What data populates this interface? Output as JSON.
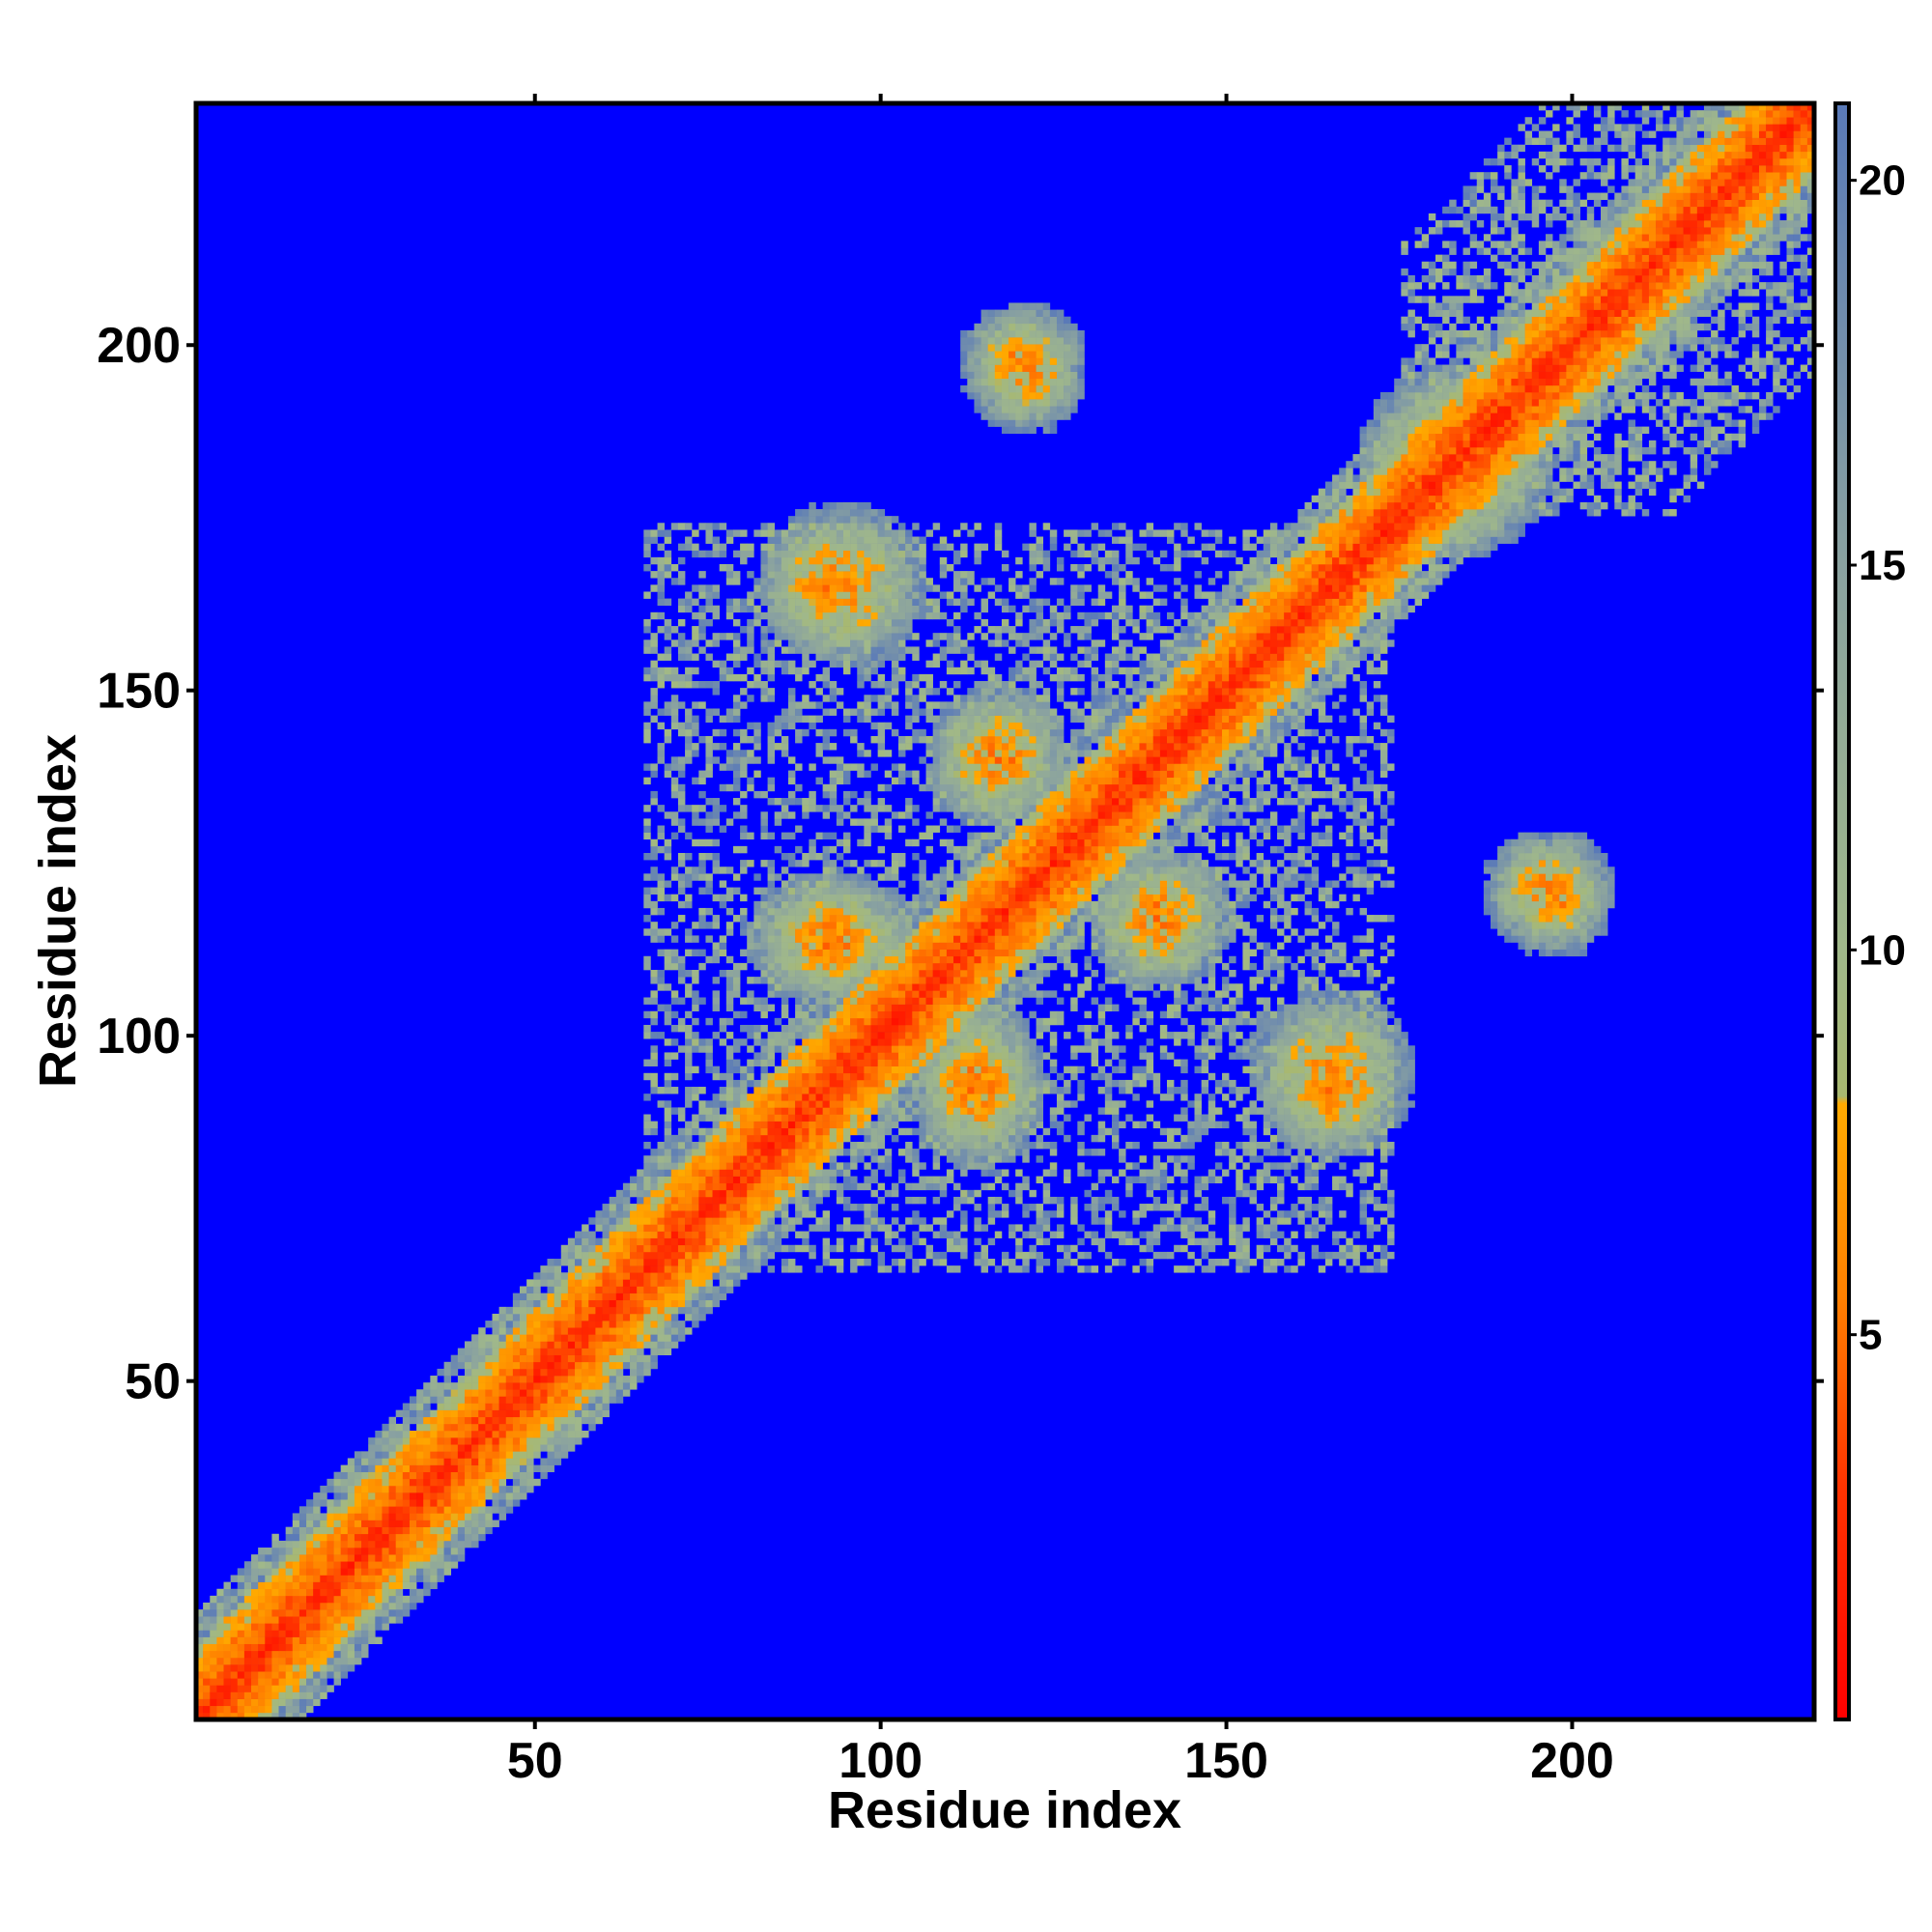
{
  "chart_data": {
    "type": "heatmap",
    "title": "",
    "xlabel": "Residue index",
    "ylabel": "Residue index",
    "xlim": [
      1,
      235
    ],
    "ylim": [
      1,
      235
    ],
    "x_ticks": [
      50,
      100,
      150,
      200
    ],
    "y_ticks": [
      50,
      100,
      150,
      200
    ],
    "colorbar": {
      "range": [
        0,
        21
      ],
      "ticks": [
        5,
        10,
        15,
        20
      ],
      "stops": [
        {
          "value": 0,
          "color": "#ff0000"
        },
        {
          "value": 3,
          "color": "#ff3300"
        },
        {
          "value": 5.5,
          "color": "#ff8000"
        },
        {
          "value": 8,
          "color": "#ffaa00"
        },
        {
          "value": 8.1,
          "color": "#a8b870"
        },
        {
          "value": 10,
          "color": "#a0b88a"
        },
        {
          "value": 15,
          "color": "#8aa2a0"
        },
        {
          "value": 21,
          "color": "#5a7ab8"
        }
      ],
      "background_color": "#0000ff"
    },
    "diagonal_band": {
      "start": 1,
      "end": 235
    },
    "contact_regions": [
      {
        "x": [
          88,
          101
        ],
        "y": [
          159,
          172
        ]
      },
      {
        "x": [
          113,
          122
        ],
        "y": [
          136,
          145
        ]
      },
      {
        "x": [
          86,
          100
        ],
        "y": [
          110,
          118
        ]
      },
      {
        "x": [
          110,
          118
        ],
        "y": [
          87,
          98
        ]
      },
      {
        "x": [
          136,
          144
        ],
        "y": [
          112,
          120
        ]
      },
      {
        "x": [
          161,
          170
        ],
        "y": [
          88,
          96
        ]
      },
      {
        "x": [
          118,
          124
        ],
        "y": [
          193,
          200
        ]
      },
      {
        "x": [
          195,
          201
        ],
        "y": [
          117,
          124
        ]
      },
      {
        "x": [
          175,
          192
        ],
        "y": [
          175,
          192
        ]
      }
    ],
    "grid": false,
    "legend": "none"
  }
}
